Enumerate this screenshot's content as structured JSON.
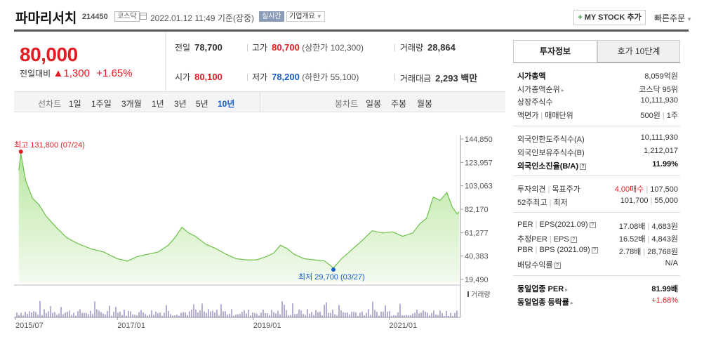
{
  "header": {
    "stock_name": "파마리서치",
    "stock_code": "214450",
    "market": "코스닥",
    "datetime": "2022.01.12 11:49 기준(장중)",
    "realtime_badge": "실시간",
    "company_overview": "기업개요",
    "my_stock_button": "MY STOCK 추가",
    "quick_order": "빠른주문"
  },
  "price": {
    "current": "80,000",
    "change_label": "전일대비",
    "change_value": "1,300",
    "change_pct": "+1.65%"
  },
  "stats": {
    "prev_close_label": "전일",
    "prev_close": "78,700",
    "high_label": "고가",
    "high": "80,700",
    "upper_limit": "(상한가 102,300)",
    "volume_label": "거래량",
    "volume": "28,864",
    "open_label": "시가",
    "open": "80,100",
    "low_label": "저가",
    "low": "78,200",
    "lower_limit": "(하한가 55,100)",
    "amount_label": "거래대금",
    "amount": "2,293 백만"
  },
  "chart_tabs": {
    "line_label": "선차트",
    "line_periods": [
      "1일",
      "1주일",
      "3개월",
      "1년",
      "3년",
      "5년",
      "10년"
    ],
    "active_period": "10년",
    "candle_label": "봉차트",
    "candle_periods": [
      "일봉",
      "주봉",
      "월봉"
    ]
  },
  "chart_data": {
    "type": "area",
    "y_ticks": [
      "144,850",
      "123,957",
      "103,063",
      "82,170",
      "61,277",
      "40,383",
      "19,490"
    ],
    "ylim": [
      19490,
      144850
    ],
    "x_ticks": [
      "2015/07",
      "2017/01",
      "2019/01",
      "2021/01"
    ],
    "high_annotation": "최고 131,800 (07/24)",
    "low_annotation": "최저 29,700 (03/27)",
    "volume_label": "거래량",
    "series_points": [
      [
        2015.55,
        117000
      ],
      [
        2015.58,
        131800
      ],
      [
        2015.65,
        108000
      ],
      [
        2015.75,
        92000
      ],
      [
        2015.85,
        86000
      ],
      [
        2015.95,
        76000
      ],
      [
        2016.1,
        66000
      ],
      [
        2016.25,
        57000
      ],
      [
        2016.4,
        52000
      ],
      [
        2016.6,
        47000
      ],
      [
        2016.8,
        44000
      ],
      [
        2017.0,
        38000
      ],
      [
        2017.15,
        36000
      ],
      [
        2017.3,
        40000
      ],
      [
        2017.45,
        42000
      ],
      [
        2017.6,
        44000
      ],
      [
        2017.75,
        50000
      ],
      [
        2017.85,
        57000
      ],
      [
        2017.95,
        66000
      ],
      [
        2018.05,
        61000
      ],
      [
        2018.15,
        58000
      ],
      [
        2018.3,
        51000
      ],
      [
        2018.45,
        47000
      ],
      [
        2018.6,
        42000
      ],
      [
        2018.75,
        38000
      ],
      [
        2018.9,
        37000
      ],
      [
        2019.05,
        37000
      ],
      [
        2019.2,
        40000
      ],
      [
        2019.3,
        43000
      ],
      [
        2019.4,
        50000
      ],
      [
        2019.5,
        47000
      ],
      [
        2019.6,
        42000
      ],
      [
        2019.75,
        38000
      ],
      [
        2019.9,
        37000
      ],
      [
        2020.05,
        36000
      ],
      [
        2020.18,
        29700
      ],
      [
        2020.3,
        38000
      ],
      [
        2020.45,
        46000
      ],
      [
        2020.6,
        54000
      ],
      [
        2020.75,
        63000
      ],
      [
        2020.9,
        61000
      ],
      [
        2021.05,
        62000
      ],
      [
        2021.2,
        58000
      ],
      [
        2021.35,
        61000
      ],
      [
        2021.45,
        69000
      ],
      [
        2021.55,
        74000
      ],
      [
        2021.65,
        93000
      ],
      [
        2021.75,
        90000
      ],
      [
        2021.85,
        97000
      ],
      [
        2021.93,
        84000
      ],
      [
        2022.0,
        78000
      ],
      [
        2022.03,
        80000
      ]
    ]
  },
  "sidebar": {
    "tab_invest": "투자정보",
    "tab_orderbook": "호가 10단계",
    "market_cap_label": "시가총액",
    "market_cap": "8,059억원",
    "market_cap_rank_label": "시가총액순위",
    "market_cap_rank": "코스닥 95위",
    "listed_shares_label": "상장주식수",
    "listed_shares": "10,111,930",
    "face_value_label": "액면가",
    "trade_unit_label": "매매단위",
    "face_value": "500원",
    "trade_unit": "1주",
    "foreign_limit_label": "외국인한도주식수(A)",
    "foreign_limit": "10,111,930",
    "foreign_hold_label": "외국인보유주식수(B)",
    "foreign_hold": "1,212,017",
    "foreign_rate_label": "외국인소진율(B/A)",
    "foreign_rate": "11.99%",
    "opinion_label": "투자의견",
    "target_label": "목표주가",
    "opinion": "4.00매수",
    "target": "107,500",
    "w52_label": "52주최고",
    "w52_low_label": "최저",
    "w52_high": "101,700",
    "w52_low": "55,000",
    "per_label": "PER",
    "eps_label": "EPS(2021.09)",
    "per": "17.08배",
    "eps": "4,683원",
    "est_per_label": "추정PER",
    "est_eps_label": "EPS",
    "est_per": "16.52배",
    "est_eps": "4,843원",
    "pbr_label": "PBR",
    "bps_label": "BPS (2021.09)",
    "pbr": "2.78배",
    "bps": "28,768원",
    "div_label": "배당수익률",
    "div": "N/A",
    "ind_per_label": "동일업종 PER",
    "ind_per": "81.99배",
    "ind_chg_label": "동일업종 등락률",
    "ind_chg": "+1.68%"
  }
}
